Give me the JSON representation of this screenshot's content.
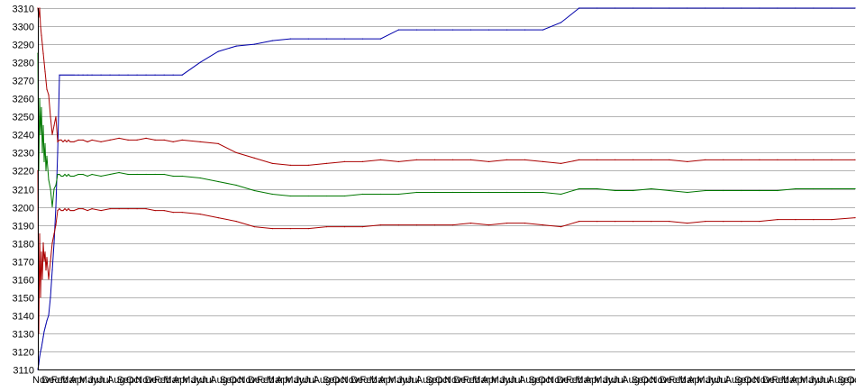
{
  "chart_data": {
    "type": "line",
    "title": "",
    "xlabel": "",
    "ylabel": "",
    "ylim": [
      3110,
      3310
    ],
    "y_ticks": [
      3110,
      3120,
      3130,
      3140,
      3150,
      3160,
      3170,
      3180,
      3190,
      3200,
      3210,
      3220,
      3230,
      3240,
      3250,
      3260,
      3270,
      3280,
      3290,
      3300,
      3310
    ],
    "grid": true,
    "legend": "none",
    "x_tick_labels": [
      "Nov",
      "Dec",
      "Feb",
      "Mar",
      "Apr",
      "May",
      "Jun",
      "Jul",
      "Aug",
      "Sep",
      "Oct",
      "Nov",
      "Dec",
      "Feb",
      "Mar",
      "Apr",
      "May",
      "Jun",
      "Jul",
      "Aug",
      "Sep",
      "Oct",
      "Nov",
      "Dec",
      "Feb",
      "Mar",
      "Apr",
      "May",
      "Jun",
      "Jul",
      "Aug",
      "Sep",
      "Oct",
      "Nov",
      "Dec",
      "Feb",
      "Mar",
      "Apr",
      "May",
      "Jun",
      "Jul",
      "Aug",
      "Sep",
      "Oct",
      "Nov",
      "Dec",
      "Feb",
      "Mar",
      "Apr",
      "May",
      "Jun",
      "Jul",
      "Aug",
      "Sep",
      "Oct",
      "Nov",
      "Dec",
      "Feb",
      "Mar",
      "Apr",
      "May",
      "Jun",
      "Jul",
      "Aug",
      "Sep",
      "Oct",
      "Nov",
      "Dec",
      "Feb",
      "Mar",
      "Apr",
      "May",
      "Jun",
      "Jul",
      "Aug",
      "Sep",
      "Oct",
      "Nov",
      "Dec",
      "Feb",
      "Mar",
      "Apr",
      "May",
      "Jun",
      "Jul",
      "Aug",
      "Sep",
      "Oct"
    ],
    "x": [
      0,
      1,
      2,
      3,
      4,
      5,
      6,
      7,
      8,
      9,
      10,
      12,
      14,
      16,
      18,
      20,
      22,
      24,
      26,
      28,
      30,
      32,
      34,
      36,
      38,
      40,
      45,
      50,
      55,
      60,
      70,
      80,
      90,
      100,
      110,
      120,
      130,
      140,
      150,
      160,
      180,
      200,
      220,
      240,
      260,
      280,
      300,
      320,
      340,
      360,
      380,
      400,
      420,
      440,
      460,
      480,
      500,
      520,
      540,
      560,
      580,
      600,
      620,
      640,
      660,
      680,
      700,
      720,
      740,
      760,
      780,
      800,
      820,
      840,
      860,
      880,
      906
    ],
    "series": [
      {
        "color": "#0000aa",
        "values": [
          3110,
          3113,
          3117,
          3120,
          3122,
          3125,
          3128,
          3131,
          3133,
          3135,
          3137,
          3140,
          3150,
          3165,
          3180,
          3200,
          3230,
          3273,
          3273,
          3273,
          3273,
          3273,
          3273,
          3273,
          3273,
          3273,
          3273,
          3273,
          3273,
          3273,
          3273,
          3273,
          3273,
          3273,
          3273,
          3273,
          3273,
          3273,
          3273,
          3273,
          3280,
          3286,
          3289,
          3290,
          3292,
          3293,
          3293,
          3293,
          3293,
          3293,
          3293,
          3298,
          3298,
          3298,
          3298,
          3298,
          3298,
          3298,
          3298,
          3298,
          3302,
          3310,
          3310,
          3310,
          3310,
          3310,
          3310,
          3310,
          3310,
          3310,
          3310,
          3310,
          3310,
          3310,
          3310,
          3310,
          3310
        ]
      },
      {
        "color": "#aa0000",
        "values": [
          3310,
          3305,
          3310,
          3300,
          3295,
          3290,
          3285,
          3280,
          3275,
          3270,
          3265,
          3262,
          3250,
          3240,
          3245,
          3250,
          3236,
          3237,
          3237,
          3236,
          3237,
          3236,
          3237,
          3236,
          3236,
          3236,
          3237,
          3237,
          3236,
          3237,
          3236,
          3237,
          3238,
          3237,
          3237,
          3238,
          3237,
          3237,
          3236,
          3237,
          3236,
          3235,
          3230,
          3227,
          3224,
          3223,
          3223,
          3224,
          3225,
          3225,
          3226,
          3225,
          3226,
          3226,
          3226,
          3226,
          3225,
          3226,
          3226,
          3225,
          3224,
          3226,
          3226,
          3226,
          3226,
          3226,
          3226,
          3225,
          3226,
          3226,
          3226,
          3226,
          3226,
          3226,
          3226,
          3226,
          3226
        ]
      },
      {
        "color": "#007700",
        "values": [
          3285,
          3220,
          3260,
          3240,
          3255,
          3230,
          3245,
          3225,
          3235,
          3220,
          3228,
          3215,
          3210,
          3200,
          3210,
          3212,
          3218,
          3218,
          3217,
          3217,
          3218,
          3217,
          3218,
          3217,
          3217,
          3217,
          3218,
          3218,
          3217,
          3218,
          3217,
          3218,
          3219,
          3218,
          3218,
          3218,
          3218,
          3218,
          3217,
          3217,
          3216,
          3214,
          3212,
          3209,
          3207,
          3206,
          3206,
          3206,
          3206,
          3207,
          3207,
          3207,
          3208,
          3208,
          3208,
          3208,
          3208,
          3208,
          3208,
          3208,
          3207,
          3210,
          3210,
          3209,
          3209,
          3210,
          3209,
          3208,
          3209,
          3209,
          3209,
          3209,
          3209,
          3210,
          3210,
          3210,
          3210
        ]
      },
      {
        "color": "#aa0000",
        "values": [
          3220,
          3130,
          3185,
          3150,
          3175,
          3160,
          3180,
          3170,
          3175,
          3165,
          3172,
          3160,
          3170,
          3180,
          3185,
          3190,
          3198,
          3199,
          3198,
          3198,
          3199,
          3198,
          3199,
          3198,
          3198,
          3198,
          3199,
          3199,
          3198,
          3199,
          3198,
          3199,
          3199,
          3199,
          3199,
          3199,
          3198,
          3198,
          3197,
          3197,
          3196,
          3194,
          3192,
          3189,
          3188,
          3188,
          3188,
          3189,
          3189,
          3189,
          3190,
          3190,
          3190,
          3190,
          3190,
          3191,
          3190,
          3191,
          3191,
          3190,
          3189,
          3192,
          3192,
          3192,
          3192,
          3192,
          3192,
          3191,
          3192,
          3192,
          3192,
          3192,
          3193,
          3193,
          3193,
          3193,
          3194
        ]
      }
    ]
  }
}
